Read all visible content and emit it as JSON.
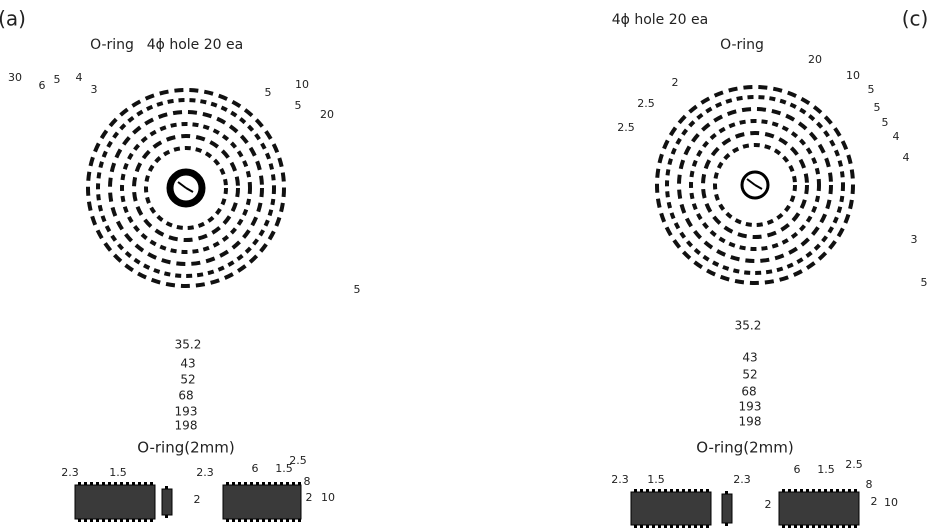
{
  "panels": [
    {
      "label": "(a)",
      "title_oring": "O-ring",
      "title_hole": "4ϕ hole 20 ea",
      "dims": [
        "30",
        "6",
        "5",
        "4",
        "3",
        "10",
        "5",
        "5",
        "20",
        "5"
      ],
      "stack": [
        "35.2",
        "43",
        "52",
        "68",
        "193",
        "198"
      ],
      "oring_label": "O-ring(2mm)",
      "bottom_dims": [
        "2.3",
        "1.5",
        "2.3",
        "6",
        "1.5",
        "2.5",
        "8",
        "2",
        "2",
        "10"
      ]
    },
    {
      "label": "(c)",
      "title_oring": "O-ring",
      "title_hole": "4ϕ hole 20 ea",
      "dims": [
        "20",
        "10",
        "2",
        "5",
        "2.5",
        "5",
        "5",
        "2.5",
        "4",
        "4",
        "3",
        "5"
      ],
      "stack": [
        "35.2",
        "43",
        "52",
        "68",
        "193",
        "198"
      ],
      "oring_label": "O-ring(2mm)",
      "bottom_dims": [
        "2.3",
        "1.5",
        "2.3",
        "6",
        "1.5",
        "2.5",
        "8",
        "2",
        "2",
        "10"
      ]
    }
  ]
}
